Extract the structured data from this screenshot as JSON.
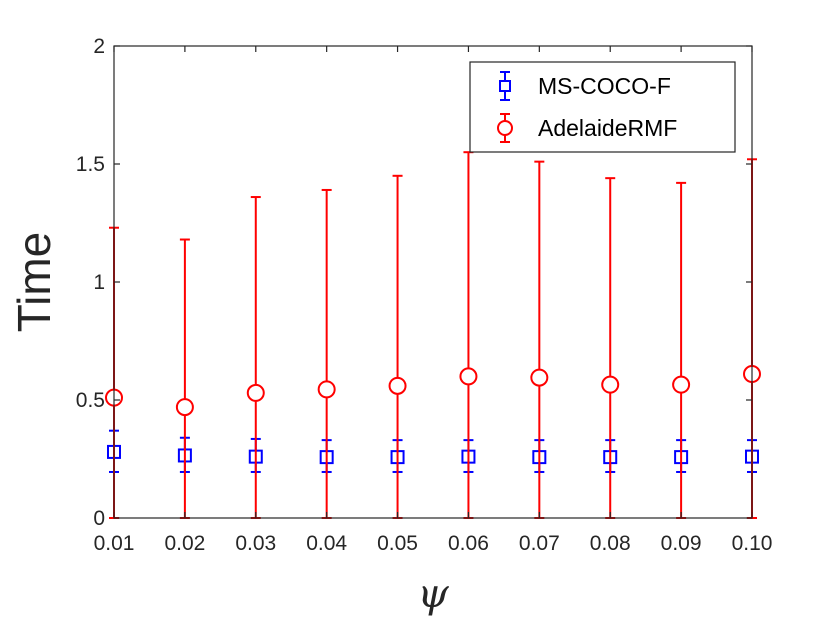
{
  "chart_data": {
    "type": "scatter",
    "title": "",
    "xlabel": "ψ",
    "ylabel": "Time",
    "categories": [
      "0.01",
      "0.02",
      "0.03",
      "0.04",
      "0.05",
      "0.06",
      "0.07",
      "0.08",
      "0.09",
      "0.10"
    ],
    "ylim": [
      0,
      2
    ],
    "yticks": [
      "0",
      "0.5",
      "1",
      "1.5",
      "2"
    ],
    "grid": false,
    "legend_position": "top-right",
    "series": [
      {
        "name": "MS-COCO-F",
        "marker": "square",
        "color": "#0000ff",
        "values": [
          0.28,
          0.265,
          0.26,
          0.258,
          0.258,
          0.26,
          0.258,
          0.258,
          0.258,
          0.26
        ],
        "lower": [
          0.195,
          0.195,
          0.195,
          0.195,
          0.195,
          0.195,
          0.195,
          0.195,
          0.195,
          0.195
        ],
        "upper": [
          0.37,
          0.34,
          0.335,
          0.33,
          0.33,
          0.33,
          0.33,
          0.33,
          0.33,
          0.33
        ]
      },
      {
        "name": "AdelaideRMF",
        "marker": "circle",
        "color": "#ff0000",
        "values": [
          0.51,
          0.47,
          0.53,
          0.545,
          0.56,
          0.6,
          0.595,
          0.565,
          0.565,
          0.61
        ],
        "lower": [
          0.0,
          0.0,
          0.0,
          0.0,
          0.0,
          0.0,
          0.0,
          0.0,
          0.0,
          0.0
        ],
        "upper": [
          1.23,
          1.18,
          1.36,
          1.39,
          1.45,
          1.55,
          1.51,
          1.44,
          1.42,
          1.52
        ]
      }
    ]
  }
}
